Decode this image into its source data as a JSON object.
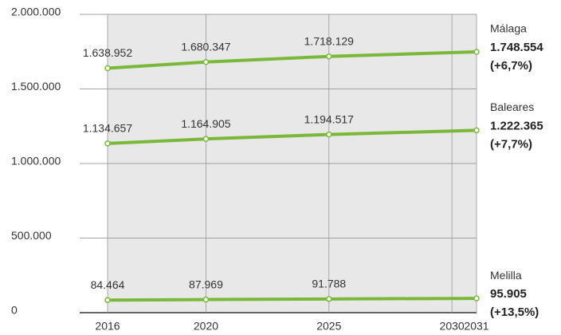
{
  "chart_data": {
    "type": "line",
    "xlim": [
      2016,
      2031
    ],
    "xticks": [
      2016,
      2020,
      2025,
      2030,
      2031
    ],
    "ylim": [
      0,
      2000000
    ],
    "yticks": [
      0,
      {
        "value": 500000,
        "label": "500.000"
      },
      {
        "value": 1000000,
        "label": "1.000.000"
      },
      {
        "value": 1500000,
        "label": "1.500.000"
      },
      {
        "value": 2000000,
        "label": "2.000.000"
      }
    ],
    "grid": true,
    "series": [
      {
        "name": "Málaga",
        "color": "#7ab83a",
        "x": [
          2016,
          2020,
          2025,
          2031
        ],
        "values": [
          1638952,
          1680347,
          1718129,
          1748554
        ],
        "value_labels": [
          "1.638.952",
          "1.680.347",
          "1.718.129",
          "1.748.554"
        ],
        "change_label": "(+6,7%)"
      },
      {
        "name": "Baleares",
        "color": "#7ab83a",
        "x": [
          2016,
          2020,
          2025,
          2031
        ],
        "values": [
          1134657,
          1164905,
          1194517,
          1222365
        ],
        "value_labels": [
          "1.134.657",
          "1.164.905",
          "1.194.517",
          "1.222.365"
        ],
        "change_label": "(+7,7%)"
      },
      {
        "name": "Melilla",
        "color": "#7ab83a",
        "x": [
          2016,
          2020,
          2025,
          2031
        ],
        "values": [
          84464,
          87969,
          91788,
          95905
        ],
        "value_labels": [
          "84.464",
          "87.969",
          "91.788",
          "95.905"
        ],
        "change_label": "(+13,5%)"
      }
    ]
  }
}
